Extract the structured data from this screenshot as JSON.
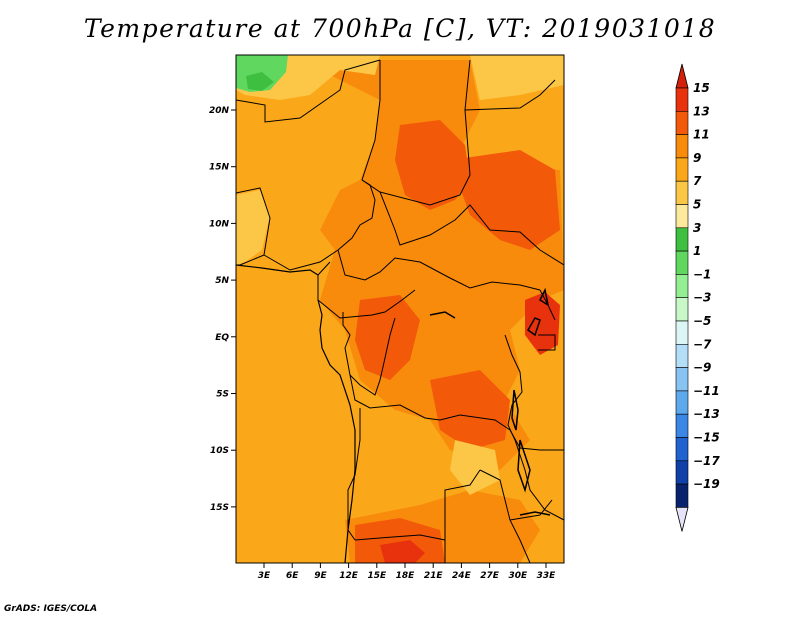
{
  "title": "Temperature at 700hPa [C], VT: 2019031018",
  "credit": "GrADS: IGES/COLA",
  "map": {
    "lat_labels": [
      "20N",
      "15N",
      "10N",
      "5N",
      "EQ",
      "5S",
      "10S",
      "15S"
    ],
    "lon_labels": [
      "3E",
      "6E",
      "9E",
      "12E",
      "15E",
      "18E",
      "21E",
      "24E",
      "27E",
      "30E",
      "33E"
    ]
  },
  "legend": {
    "labels": [
      "15",
      "13",
      "11",
      "9",
      "7",
      "5",
      "3",
      "1",
      "−1",
      "−3",
      "−5",
      "−7",
      "−9",
      "−11",
      "−13",
      "−15",
      "−17",
      "−19"
    ],
    "colors": [
      "#e8320e",
      "#f25a0a",
      "#f88a0c",
      "#fba71a",
      "#fcc746",
      "#fde99b",
      "#3fbf3f",
      "#60d860",
      "#94ee94",
      "#c8f8c8",
      "#dcf6f6",
      "#b4def8",
      "#88c4f2",
      "#5ea8ec",
      "#3c86e6",
      "#2062d0",
      "#1040a8",
      "#08226e"
    ],
    "top_arrow_color": "#d3200a",
    "bottom_arrow_color": "#e6e2f8"
  },
  "colors": {
    "c7": "#fcc746",
    "c9": "#fba71a",
    "c11": "#f88a0c",
    "c13": "#f25a0a",
    "c15": "#e8320e",
    "green1": "#60d860",
    "green3": "#3fbf3f"
  }
}
